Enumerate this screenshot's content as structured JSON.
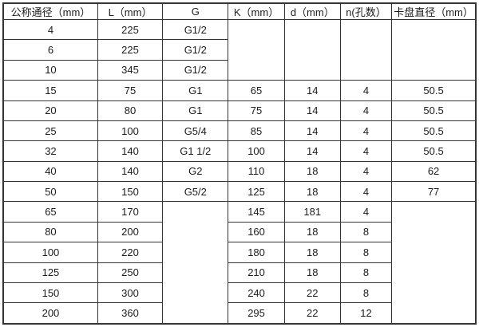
{
  "colors": {
    "border": "#353535",
    "text": "#1c1c1c",
    "background": "#ffffff"
  },
  "table": {
    "headers": [
      "公称通径（mm）",
      "L（mm）",
      "G",
      "K（mm）",
      "d（mm）",
      "n(孔数）",
      "卡盘直径（mm）"
    ],
    "rows": [
      [
        "4",
        "225",
        "G1/2",
        {
          "v": "",
          "rowspan": 3
        },
        {
          "v": "",
          "rowspan": 3
        },
        {
          "v": "",
          "rowspan": 3
        },
        {
          "v": "",
          "rowspan": 3
        }
      ],
      [
        "6",
        "225",
        "G1/2"
      ],
      [
        "10",
        "345",
        "G1/2"
      ],
      [
        "15",
        "75",
        "G1",
        "65",
        "14",
        "4",
        "50.5"
      ],
      [
        "20",
        "80",
        "G1",
        "75",
        "14",
        "4",
        "50.5"
      ],
      [
        "25",
        "100",
        "G5/4",
        "85",
        "14",
        "4",
        "50.5"
      ],
      [
        "32",
        "140",
        "G1 1/2",
        "100",
        "14",
        "4",
        "50.5"
      ],
      [
        "40",
        "140",
        "G2",
        "110",
        "18",
        "4",
        "62"
      ],
      [
        "50",
        "150",
        "G5/2",
        "125",
        "18",
        "4",
        "77"
      ],
      [
        "65",
        "170",
        {
          "v": "",
          "rowspan": 6
        },
        "145",
        "181",
        "4",
        {
          "v": "",
          "rowspan": 6
        }
      ],
      [
        "80",
        "200",
        "160",
        "18",
        "8"
      ],
      [
        "100",
        "220",
        "180",
        "18",
        "8"
      ],
      [
        "125",
        "250",
        "210",
        "18",
        "8"
      ],
      [
        "150",
        "300",
        "240",
        "22",
        "8"
      ],
      [
        "200",
        "360",
        "295",
        "22",
        "12"
      ]
    ]
  }
}
